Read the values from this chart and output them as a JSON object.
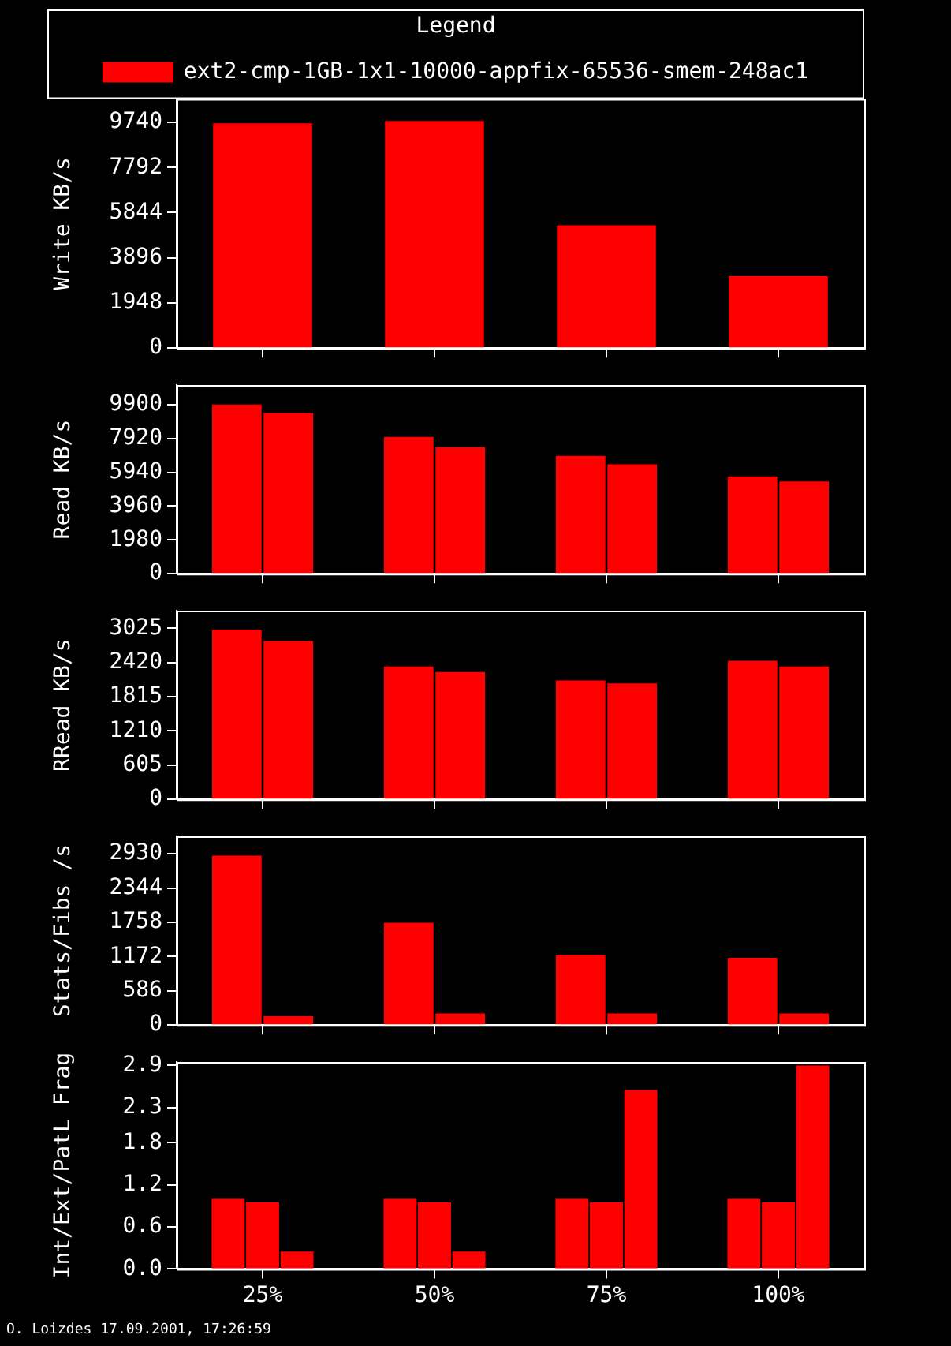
{
  "chart_data": [
    {
      "type": "bar",
      "ylabel": "Write KB/s",
      "legend": "top",
      "legend_title": "Legend",
      "tick_labels": "y",
      "categories": [
        null,
        null,
        null,
        null
      ],
      "ylim": [
        0,
        10740
      ],
      "yticks": [
        0,
        1948,
        3896,
        5844,
        7792,
        9740
      ],
      "series": [
        {
          "name": "ext2-cmp-1GB-1x1-10000-appfix-65536-smem-248ac1",
          "color": "#ff0000",
          "values": [
            9700,
            9800,
            5300,
            3100
          ]
        }
      ]
    },
    {
      "type": "bar",
      "ylabel": "Read KB/s",
      "tick_labels": "y",
      "categories": [
        null,
        null,
        null,
        null
      ],
      "ylim": [
        0,
        11040
      ],
      "yticks": [
        0,
        1980,
        3960,
        5940,
        7920,
        9900
      ],
      "series": [
        {
          "color": "#ff0000",
          "values": [
            9900,
            8000,
            6900,
            5700
          ]
        },
        {
          "color": "#ff0000",
          "values": [
            9400,
            7400,
            6400,
            5400
          ]
        }
      ]
    },
    {
      "type": "bar",
      "ylabel": "RRead KB/s",
      "tick_labels": "y",
      "categories": [
        null,
        null,
        null,
        null
      ],
      "ylim": [
        0,
        3336
      ],
      "yticks": [
        0,
        605,
        1210,
        1815,
        2420,
        3025
      ],
      "series": [
        {
          "color": "#ff0000",
          "values": [
            3000,
            2350,
            2100,
            2450
          ]
        },
        {
          "color": "#ff0000",
          "values": [
            2800,
            2250,
            2050,
            2350
          ]
        }
      ]
    },
    {
      "type": "bar",
      "ylabel": "Stats/Fibs /s",
      "tick_labels": "y",
      "categories": [
        null,
        null,
        null,
        null
      ],
      "ylim": [
        0,
        3230
      ],
      "yticks": [
        0,
        586,
        1172,
        1758,
        2344,
        2930
      ],
      "series": [
        {
          "color": "#ff0000",
          "values": [
            2900,
            1750,
            1200,
            1150
          ]
        },
        {
          "color": "#ff0000",
          "values": [
            150,
            200,
            200,
            200
          ]
        }
      ]
    },
    {
      "type": "bar",
      "ylabel": "Int/Ext/PatL Frag",
      "categories": [
        "25%",
        "50%",
        "75%",
        "100%"
      ],
      "ylim": [
        0,
        2.95
      ],
      "yticks": [
        {
          "value": 0,
          "label": "0.0"
        },
        0.6,
        1.2,
        1.8,
        2.3,
        2.9
      ],
      "annotations": [
        "O. Loizdes 17.09.2001, 17:26:59"
      ],
      "series": [
        {
          "color": "#ff0000",
          "values": [
            1.0,
            1.0,
            1.0,
            1.0
          ]
        },
        {
          "color": "#ff0000",
          "values": [
            0.95,
            0.95,
            0.95,
            0.95
          ]
        },
        {
          "color": "#ff0000",
          "values": [
            0.25,
            0.25,
            2.55,
            2.9
          ]
        }
      ]
    }
  ]
}
